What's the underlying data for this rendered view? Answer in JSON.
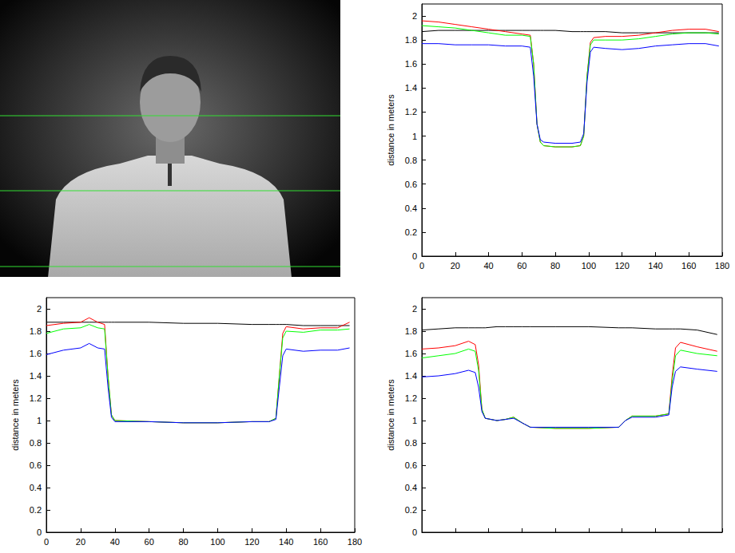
{
  "chart_data": [
    {
      "type": "line",
      "ylabel": "distance in meters",
      "xlim": [
        0,
        180
      ],
      "xticks": [
        0,
        20,
        40,
        60,
        80,
        100,
        120,
        140,
        160,
        180
      ],
      "ylim": [
        0,
        2.1
      ],
      "yticks": [
        0,
        0.2,
        0.4,
        0.6,
        0.8,
        1,
        1.2,
        1.4,
        1.6,
        1.8,
        2
      ],
      "grid": false,
      "x": [
        0,
        10,
        20,
        30,
        40,
        50,
        60,
        65,
        67,
        69,
        71,
        73,
        80,
        90,
        95,
        97,
        99,
        101,
        103,
        110,
        120,
        130,
        140,
        150,
        160,
        170,
        178
      ],
      "series": [
        {
          "color": "#000000",
          "values": [
            1.87,
            1.88,
            1.88,
            1.88,
            1.88,
            1.88,
            1.88,
            1.88,
            1.88,
            1.88,
            1.88,
            1.88,
            1.88,
            1.87,
            1.87,
            1.87,
            1.87,
            1.87,
            1.87,
            1.87,
            1.86,
            1.86,
            1.86,
            1.86,
            1.86,
            1.86,
            1.86
          ]
        },
        {
          "color": "#ff0000",
          "values": [
            1.96,
            1.95,
            1.93,
            1.91,
            1.89,
            1.87,
            1.85,
            1.84,
            1.6,
            1.1,
            0.95,
            0.92,
            0.91,
            0.91,
            0.92,
            1.0,
            1.5,
            1.78,
            1.82,
            1.83,
            1.83,
            1.84,
            1.86,
            1.88,
            1.89,
            1.89,
            1.87
          ]
        },
        {
          "color": "#00ff00",
          "values": [
            1.92,
            1.91,
            1.9,
            1.88,
            1.86,
            1.84,
            1.84,
            1.83,
            1.6,
            1.1,
            0.95,
            0.92,
            0.91,
            0.91,
            0.92,
            1.0,
            1.5,
            1.76,
            1.8,
            1.8,
            1.8,
            1.81,
            1.83,
            1.85,
            1.86,
            1.86,
            1.85
          ]
        },
        {
          "color": "#0000ff",
          "values": [
            1.77,
            1.77,
            1.76,
            1.76,
            1.76,
            1.75,
            1.75,
            1.74,
            1.5,
            1.1,
            0.97,
            0.95,
            0.94,
            0.94,
            0.95,
            1.02,
            1.45,
            1.7,
            1.74,
            1.73,
            1.72,
            1.73,
            1.75,
            1.76,
            1.77,
            1.77,
            1.75
          ]
        }
      ]
    },
    {
      "type": "line",
      "ylabel": "distance in meters",
      "xlim": [
        0,
        180
      ],
      "xticks": [
        0,
        20,
        40,
        60,
        80,
        100,
        120,
        140,
        160,
        180
      ],
      "ylim": [
        0,
        2.1
      ],
      "yticks": [
        0,
        0.2,
        0.4,
        0.6,
        0.8,
        1,
        1.2,
        1.4,
        1.6,
        1.8,
        2
      ],
      "grid": false,
      "x": [
        0,
        10,
        20,
        25,
        30,
        34,
        36,
        38,
        40,
        60,
        80,
        100,
        120,
        130,
        134,
        136,
        138,
        140,
        150,
        160,
        170,
        177
      ],
      "series": [
        {
          "color": "#000000",
          "values": [
            1.88,
            1.88,
            1.88,
            1.88,
            1.88,
            1.88,
            1.88,
            1.88,
            1.88,
            1.88,
            1.87,
            1.87,
            1.86,
            1.86,
            1.86,
            1.86,
            1.86,
            1.86,
            1.85,
            1.85,
            1.85,
            1.85
          ]
        },
        {
          "color": "#ff0000",
          "values": [
            1.85,
            1.87,
            1.88,
            1.92,
            1.88,
            1.86,
            1.4,
            1.05,
            1.0,
            0.99,
            0.98,
            0.98,
            0.99,
            0.99,
            1.02,
            1.4,
            1.78,
            1.84,
            1.82,
            1.83,
            1.83,
            1.88
          ]
        },
        {
          "color": "#00ff00",
          "values": [
            1.78,
            1.82,
            1.83,
            1.86,
            1.83,
            1.82,
            1.4,
            1.05,
            1.0,
            0.99,
            0.98,
            0.98,
            0.99,
            0.99,
            1.02,
            1.4,
            1.74,
            1.8,
            1.79,
            1.81,
            1.81,
            1.82
          ]
        },
        {
          "color": "#0000ff",
          "values": [
            1.59,
            1.63,
            1.65,
            1.69,
            1.65,
            1.64,
            1.3,
            1.03,
            0.99,
            0.99,
            0.98,
            0.98,
            0.99,
            0.99,
            1.01,
            1.3,
            1.58,
            1.64,
            1.62,
            1.63,
            1.63,
            1.65
          ]
        }
      ]
    },
    {
      "type": "line",
      "ylabel": "distance in meters",
      "xlim": [
        0,
        180
      ],
      "xticks": [
        0,
        20,
        40,
        60,
        80,
        100,
        120,
        140,
        160,
        180
      ],
      "ylim": [
        0,
        2.1
      ],
      "yticks": [
        0,
        0.2,
        0.4,
        0.6,
        0.8,
        1,
        1.2,
        1.4,
        1.6,
        1.8,
        2
      ],
      "grid": false,
      "tick_labels": "y",
      "x": [
        0,
        10,
        20,
        28,
        32,
        34,
        36,
        38,
        45,
        50,
        55,
        60,
        65,
        80,
        100,
        118,
        122,
        126,
        140,
        148,
        150,
        152,
        155,
        165,
        177
      ],
      "series": [
        {
          "color": "#000000",
          "values": [
            1.81,
            1.82,
            1.83,
            1.83,
            1.83,
            1.83,
            1.83,
            1.83,
            1.84,
            1.84,
            1.84,
            1.84,
            1.84,
            1.84,
            1.84,
            1.83,
            1.83,
            1.83,
            1.82,
            1.82,
            1.82,
            1.82,
            1.82,
            1.81,
            1.77
          ]
        },
        {
          "color": "#ff0000",
          "values": [
            1.64,
            1.65,
            1.67,
            1.71,
            1.68,
            1.5,
            1.1,
            1.02,
            1.0,
            1.01,
            1.03,
            0.98,
            0.94,
            0.93,
            0.93,
            0.94,
            1.0,
            1.04,
            1.04,
            1.06,
            1.4,
            1.65,
            1.7,
            1.66,
            1.62
          ]
        },
        {
          "color": "#00ff00",
          "values": [
            1.56,
            1.58,
            1.6,
            1.64,
            1.62,
            1.45,
            1.1,
            1.02,
            1.0,
            1.01,
            1.03,
            0.98,
            0.94,
            0.93,
            0.93,
            0.94,
            1.0,
            1.04,
            1.04,
            1.06,
            1.35,
            1.58,
            1.63,
            1.6,
            1.58
          ]
        },
        {
          "color": "#0000ff",
          "values": [
            1.39,
            1.4,
            1.42,
            1.45,
            1.43,
            1.3,
            1.08,
            1.02,
            1.0,
            1.01,
            1.02,
            0.98,
            0.94,
            0.94,
            0.94,
            0.94,
            1.0,
            1.03,
            1.03,
            1.05,
            1.3,
            1.44,
            1.48,
            1.46,
            1.44
          ]
        }
      ]
    }
  ]
}
